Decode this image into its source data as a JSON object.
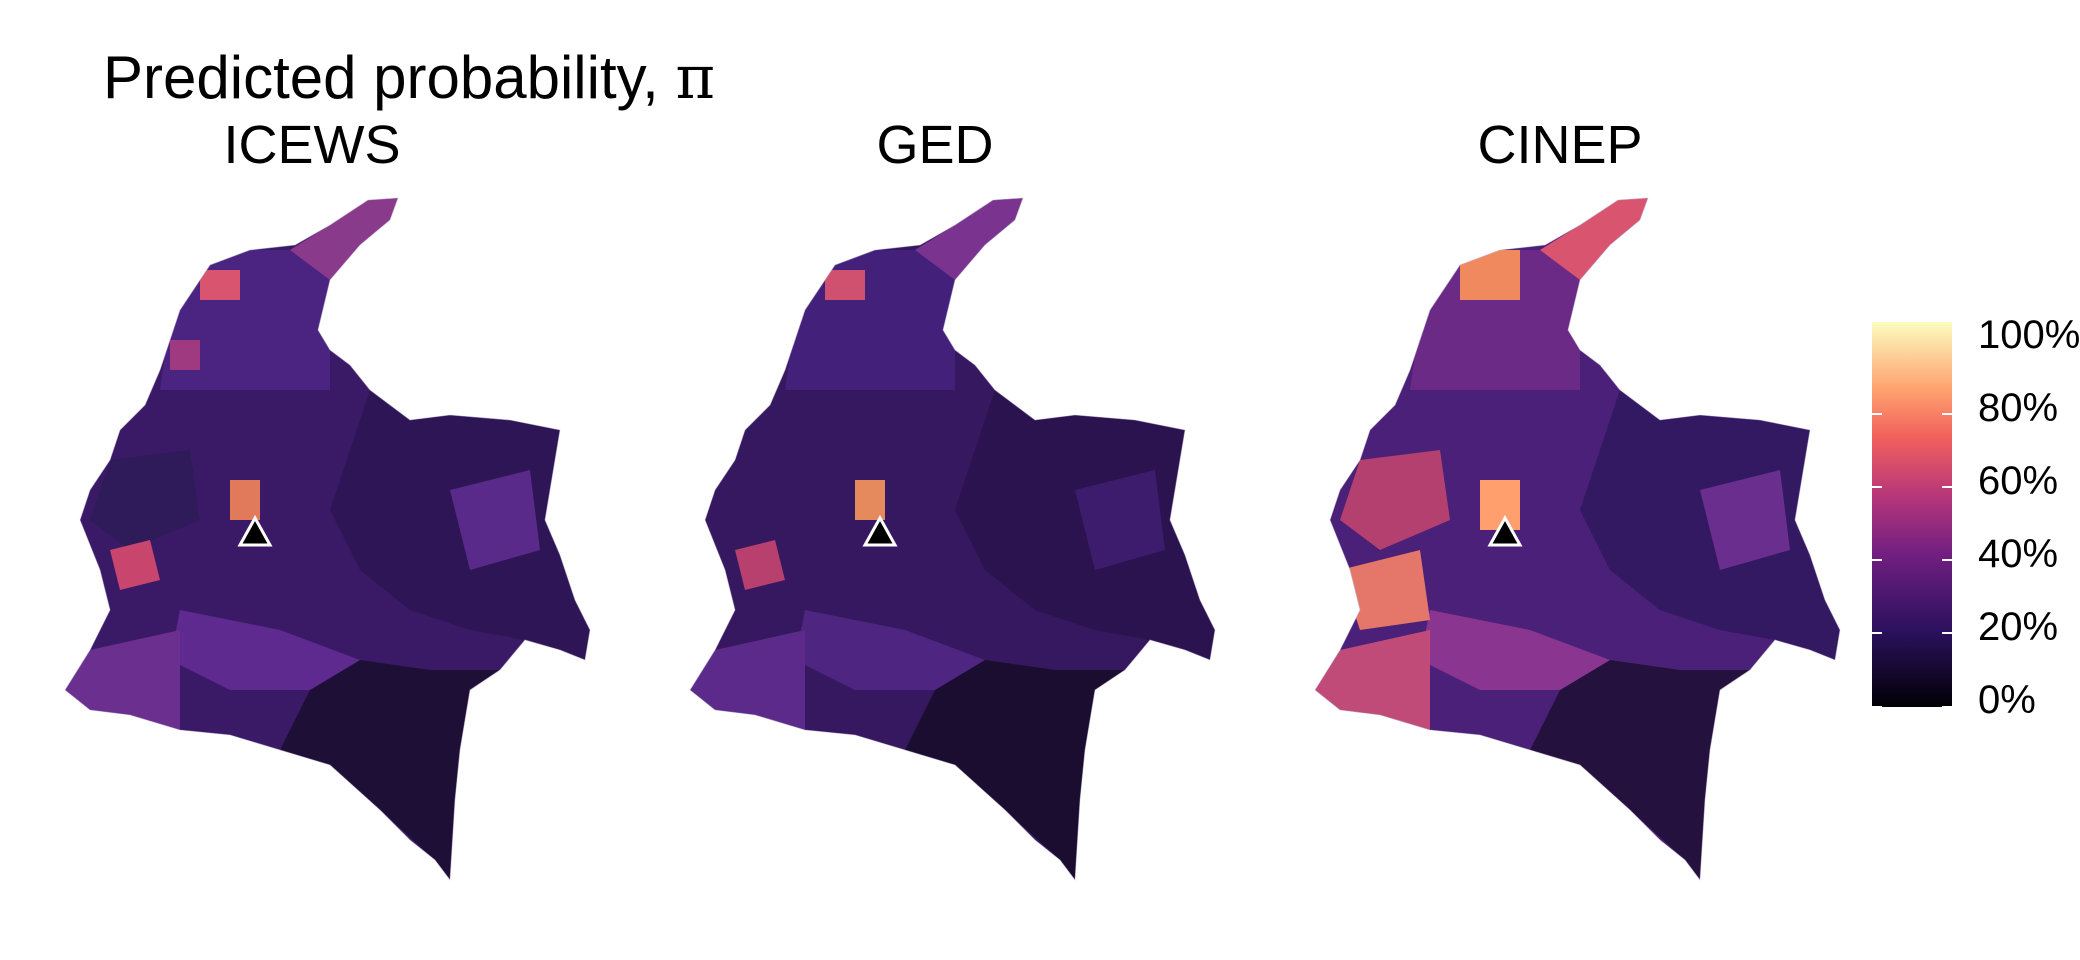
{
  "title": {
    "text": "Predicted probability, ",
    "symbol": "π"
  },
  "panels": [
    {
      "label": "ICEWS"
    },
    {
      "label": "GED"
    },
    {
      "label": "CINEP"
    }
  ],
  "legend": {
    "ticks": [
      "0%",
      "20%",
      "40%",
      "60%",
      "80%",
      "100%"
    ],
    "colors": [
      "#000004",
      "#2c115f",
      "#721f81",
      "#b73779",
      "#f1605d",
      "#fe9f6d",
      "#fcfdbf"
    ]
  },
  "marker": {
    "shape": "triangle",
    "color": "#000000"
  }
}
